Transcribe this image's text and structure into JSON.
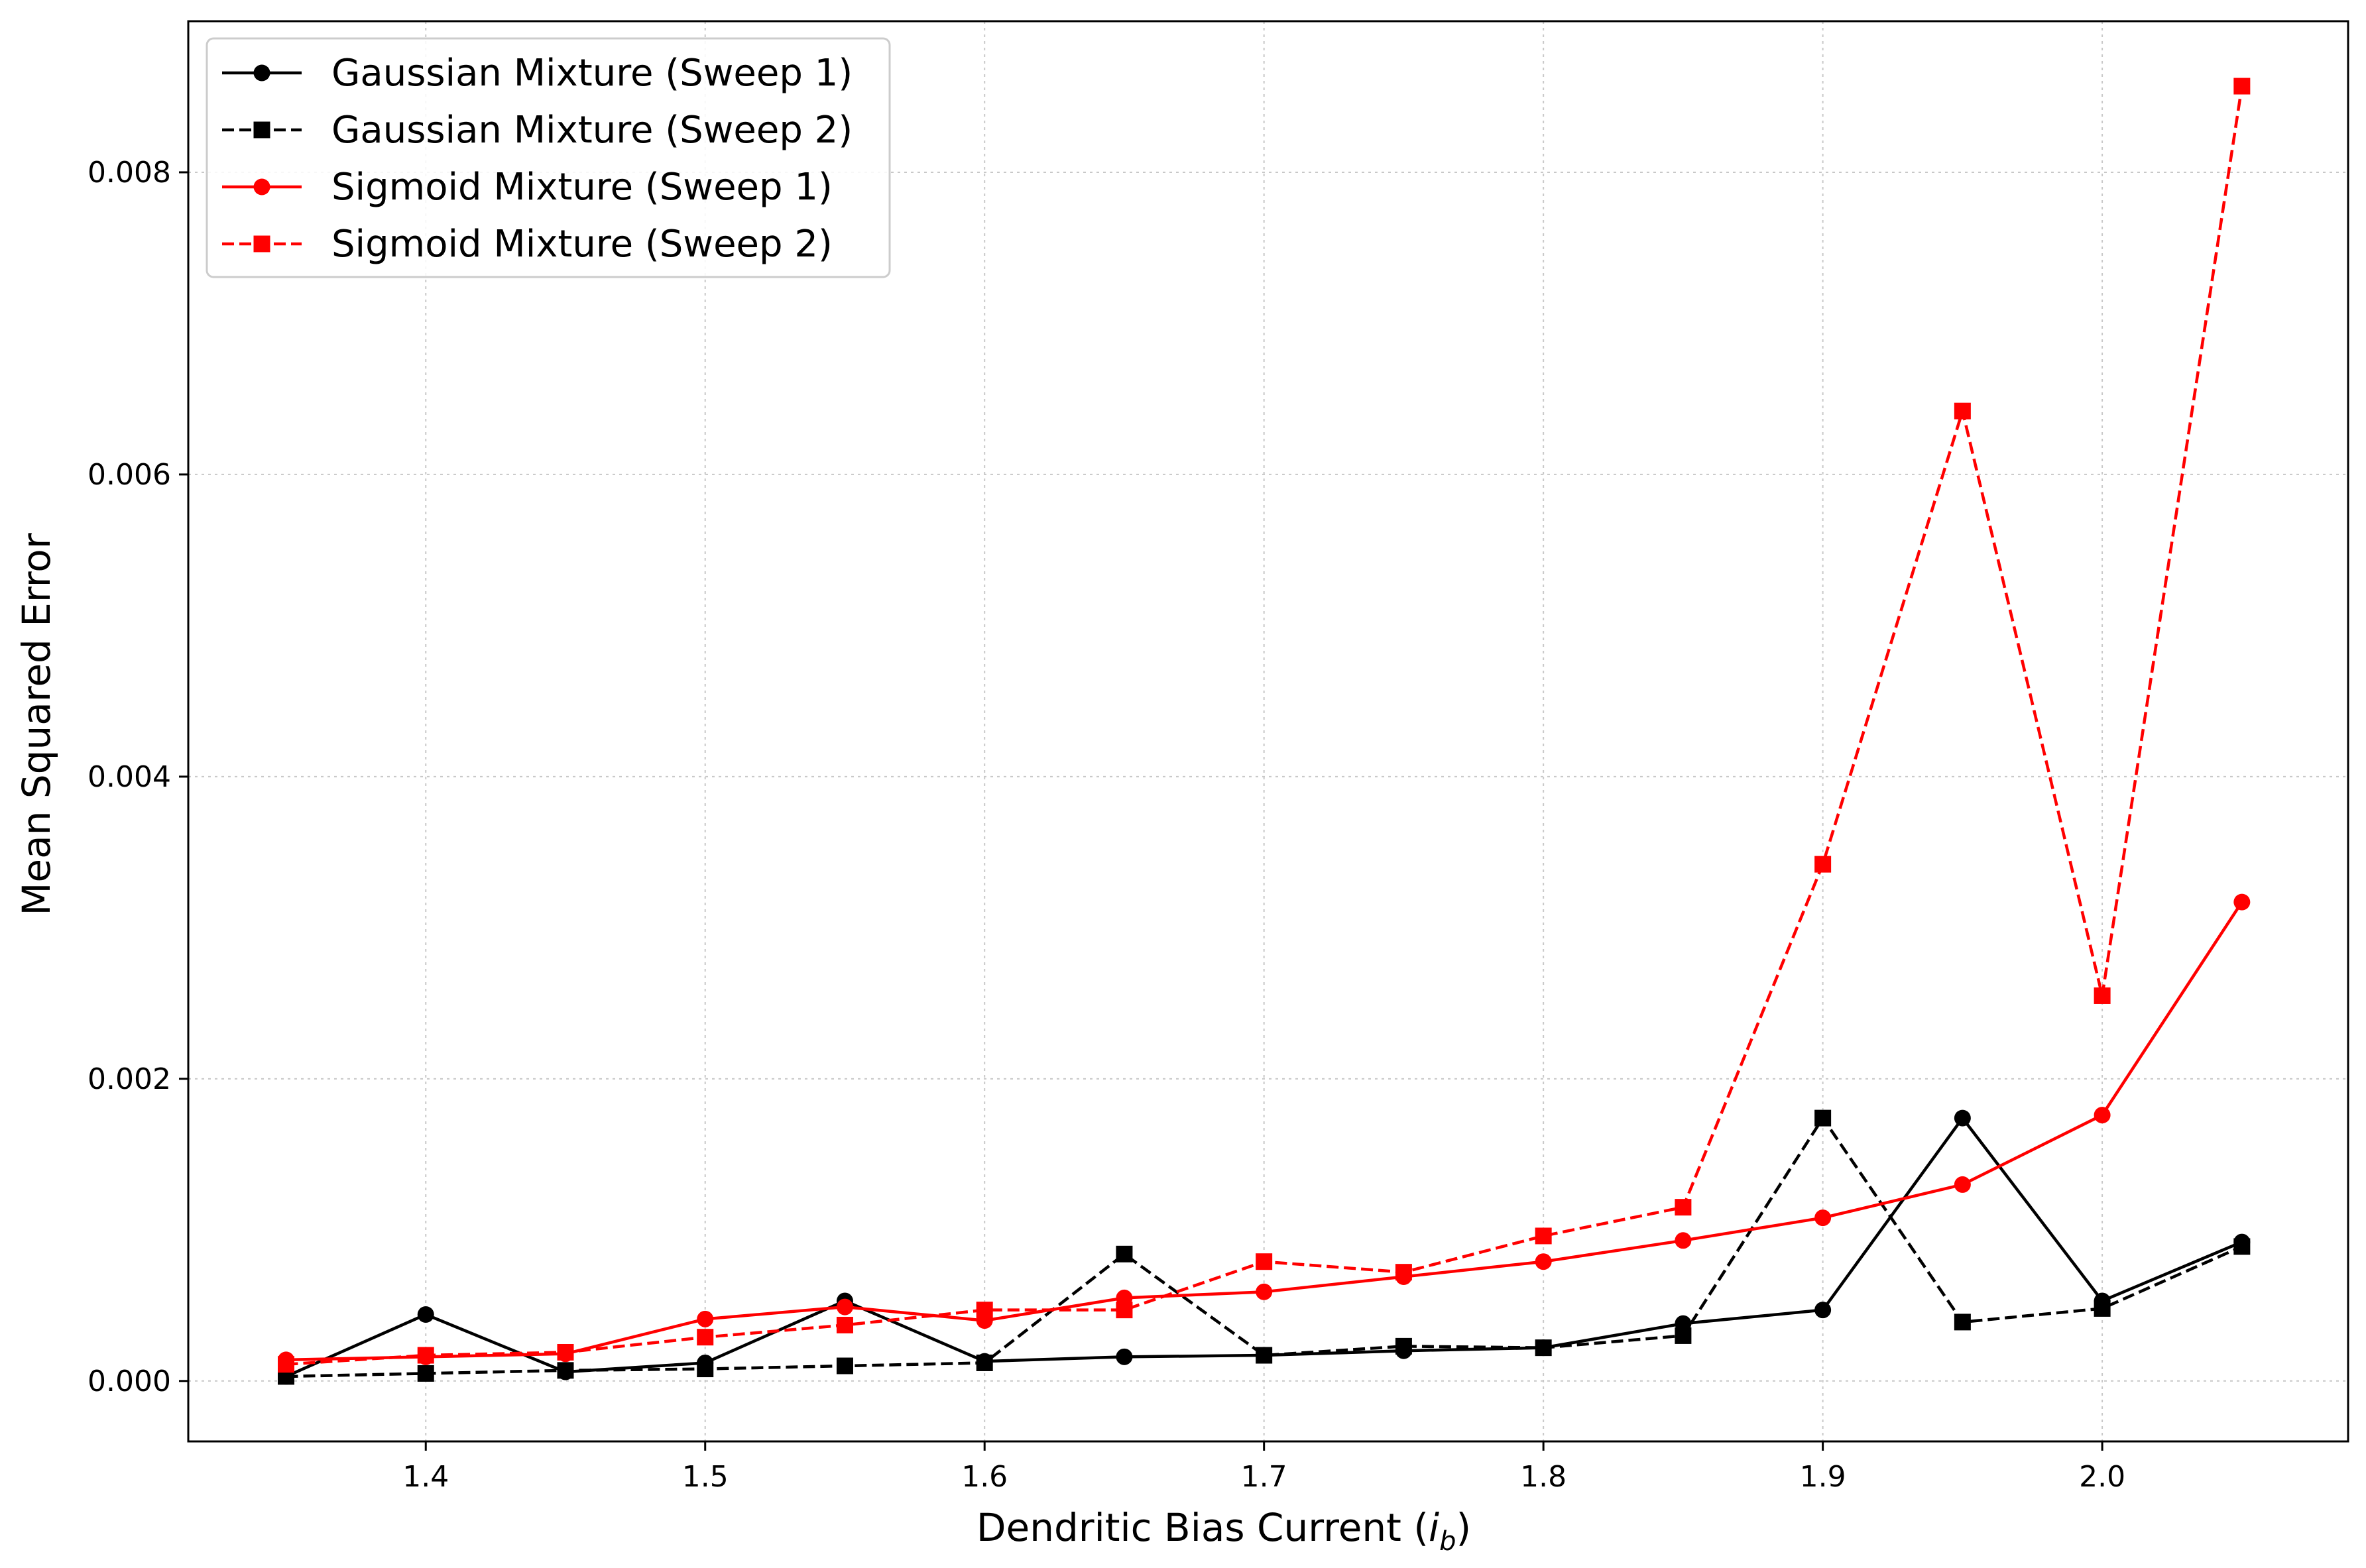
{
  "chart_data": {
    "type": "line",
    "xlabel": "Dendritic Bias Current (",
    "xlabel_var": "i",
    "xlabel_sub": "b",
    "xlabel_close": ")",
    "ylabel": "Mean Squared Error",
    "xlim": [
      1.315,
      2.088
    ],
    "ylim": [
      -0.0004,
      0.009
    ],
    "x_ticks": [
      1.4,
      1.5,
      1.6,
      1.7,
      1.8,
      1.9,
      2.0
    ],
    "x_tick_labels": [
      "1.4",
      "1.5",
      "1.6",
      "1.7",
      "1.8",
      "1.9",
      "2.0"
    ],
    "y_ticks": [
      0.0,
      0.002,
      0.004,
      0.006,
      0.008
    ],
    "y_tick_labels": [
      "0.000",
      "0.002",
      "0.004",
      "0.006",
      "0.008"
    ],
    "grid": true,
    "legend_position": "top-left",
    "x": [
      1.35,
      1.4,
      1.45,
      1.5,
      1.55,
      1.6,
      1.65,
      1.7,
      1.75,
      1.8,
      1.85,
      1.9,
      1.95,
      2.0,
      2.05
    ],
    "series": [
      {
        "name": "Gaussian Mixture (Sweep 1)",
        "color": "#000000",
        "dash": "solid",
        "marker": "circle",
        "values": [
          3e-05,
          0.00044,
          6e-05,
          0.00012,
          0.00053,
          0.00013,
          0.00016,
          0.00017,
          0.0002,
          0.00022,
          0.00038,
          0.00047,
          0.00174,
          0.00053,
          0.00092
        ]
      },
      {
        "name": "Gaussian Mixture (Sweep 2)",
        "color": "#000000",
        "dash": "dashed",
        "marker": "square",
        "values": [
          3e-05,
          5e-05,
          7e-05,
          8e-05,
          0.0001,
          0.00012,
          0.00084,
          0.00017,
          0.00023,
          0.00022,
          0.0003,
          0.00174,
          0.00039,
          0.00048,
          0.00089
        ]
      },
      {
        "name": "Sigmoid Mixture (Sweep 1)",
        "color": "#ff0000",
        "dash": "solid",
        "marker": "circle",
        "values": [
          0.00014,
          0.00016,
          0.00018,
          0.00041,
          0.00049,
          0.0004,
          0.00055,
          0.00059,
          0.00069,
          0.00079,
          0.00093,
          0.00108,
          0.0013,
          0.00176,
          0.00317
        ]
      },
      {
        "name": "Sigmoid Mixture (Sweep 2)",
        "color": "#ff0000",
        "dash": "dashed",
        "marker": "square",
        "values": [
          0.00011,
          0.00017,
          0.00019,
          0.00029,
          0.00037,
          0.00047,
          0.00047,
          0.00079,
          0.00072,
          0.00096,
          0.00115,
          0.00342,
          0.00642,
          0.00255,
          0.00857
        ]
      }
    ]
  }
}
